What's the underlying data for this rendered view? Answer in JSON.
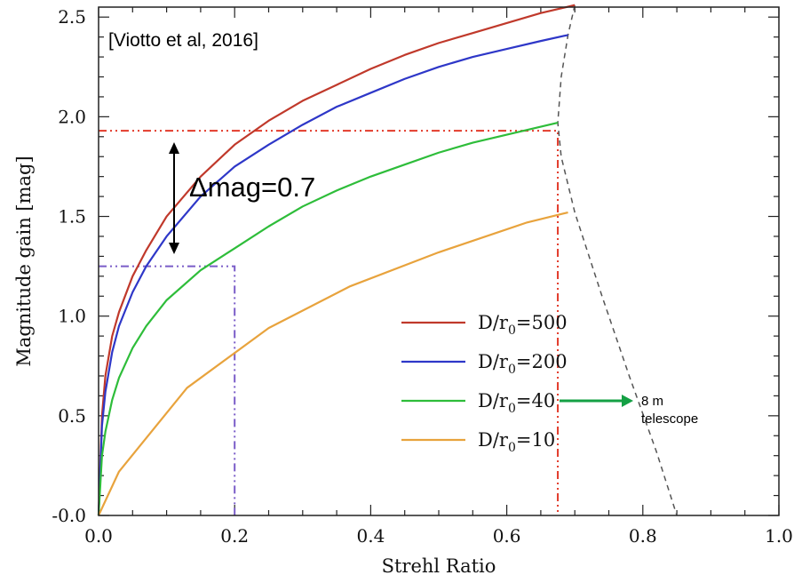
{
  "chart_data": {
    "type": "line",
    "title": "",
    "xlabel": "Strehl Ratio",
    "ylabel": "Magnitude gain [mag]",
    "xlim": [
      0.0,
      1.0
    ],
    "ylim": [
      0.0,
      2.55
    ],
    "x_ticks": [
      "0.0",
      "0.2",
      "0.4",
      "0.6",
      "0.8",
      "1.0"
    ],
    "y_ticks": [
      "-0.0",
      "0.5",
      "1.0",
      "1.5",
      "2.0",
      "2.5"
    ],
    "legend_position": "lower-center",
    "series": [
      {
        "name_main": "D/r",
        "name_sub": "0",
        "name_tail": "=500",
        "color": "#c0392b",
        "x": [
          0.0,
          0.005,
          0.01,
          0.02,
          0.03,
          0.05,
          0.07,
          0.1,
          0.15,
          0.2,
          0.25,
          0.3,
          0.35,
          0.4,
          0.45,
          0.5,
          0.55,
          0.6,
          0.65,
          0.7
        ],
        "y": [
          0.0,
          0.5,
          0.7,
          0.9,
          1.02,
          1.2,
          1.33,
          1.5,
          1.7,
          1.86,
          1.98,
          2.08,
          2.16,
          2.24,
          2.31,
          2.37,
          2.42,
          2.47,
          2.52,
          2.56
        ]
      },
      {
        "name_main": "D/r",
        "name_sub": "0",
        "name_tail": "=200",
        "color": "#2e37c8",
        "x": [
          0.0,
          0.005,
          0.01,
          0.02,
          0.03,
          0.05,
          0.07,
          0.1,
          0.15,
          0.2,
          0.25,
          0.3,
          0.35,
          0.4,
          0.45,
          0.5,
          0.55,
          0.6,
          0.65,
          0.69
        ],
        "y": [
          0.0,
          0.45,
          0.62,
          0.82,
          0.95,
          1.12,
          1.25,
          1.4,
          1.6,
          1.75,
          1.86,
          1.96,
          2.05,
          2.12,
          2.19,
          2.25,
          2.3,
          2.34,
          2.38,
          2.41
        ]
      },
      {
        "name_main": "D/r",
        "name_sub": "0",
        "name_tail": "=40",
        "color": "#2ebd3a",
        "x": [
          0.0,
          0.005,
          0.01,
          0.02,
          0.03,
          0.05,
          0.07,
          0.1,
          0.15,
          0.2,
          0.25,
          0.3,
          0.35,
          0.4,
          0.45,
          0.5,
          0.55,
          0.6,
          0.65,
          0.675
        ],
        "y": [
          0.0,
          0.3,
          0.42,
          0.58,
          0.69,
          0.84,
          0.95,
          1.08,
          1.23,
          1.34,
          1.45,
          1.55,
          1.63,
          1.7,
          1.76,
          1.82,
          1.87,
          1.91,
          1.95,
          1.97
        ]
      },
      {
        "name_main": "D/r",
        "name_sub": "0",
        "name_tail": "=10",
        "color": "#e8a33d",
        "x": [
          0.0,
          0.03,
          0.13,
          0.25,
          0.37,
          0.5,
          0.63,
          0.69
        ],
        "y": [
          0.0,
          0.22,
          0.64,
          0.94,
          1.15,
          1.32,
          1.47,
          1.52
        ]
      }
    ],
    "reference_lines": [
      {
        "color": "#e23b2b",
        "points": [
          [
            0.0,
            1.93
          ],
          [
            0.675,
            1.93
          ],
          [
            0.675,
            0.0
          ]
        ]
      },
      {
        "color": "#7a5cc8",
        "points": [
          [
            0.0,
            1.25
          ],
          [
            0.2,
            1.25
          ],
          [
            0.2,
            0.0
          ]
        ]
      }
    ],
    "envelope_line": {
      "color": "#555555",
      "x": [
        0.7,
        0.69,
        0.68,
        0.675,
        0.68,
        0.7,
        0.74,
        0.78,
        0.82,
        0.85
      ],
      "y": [
        2.56,
        2.41,
        2.2,
        1.97,
        1.8,
        1.52,
        1.1,
        0.7,
        0.32,
        0.0
      ]
    },
    "annotations": {
      "citation": "[Viotto et al, 2016]",
      "delta": "Δmag=0.7",
      "telescope_line1": "8 m",
      "telescope_line2": "telescope"
    }
  }
}
